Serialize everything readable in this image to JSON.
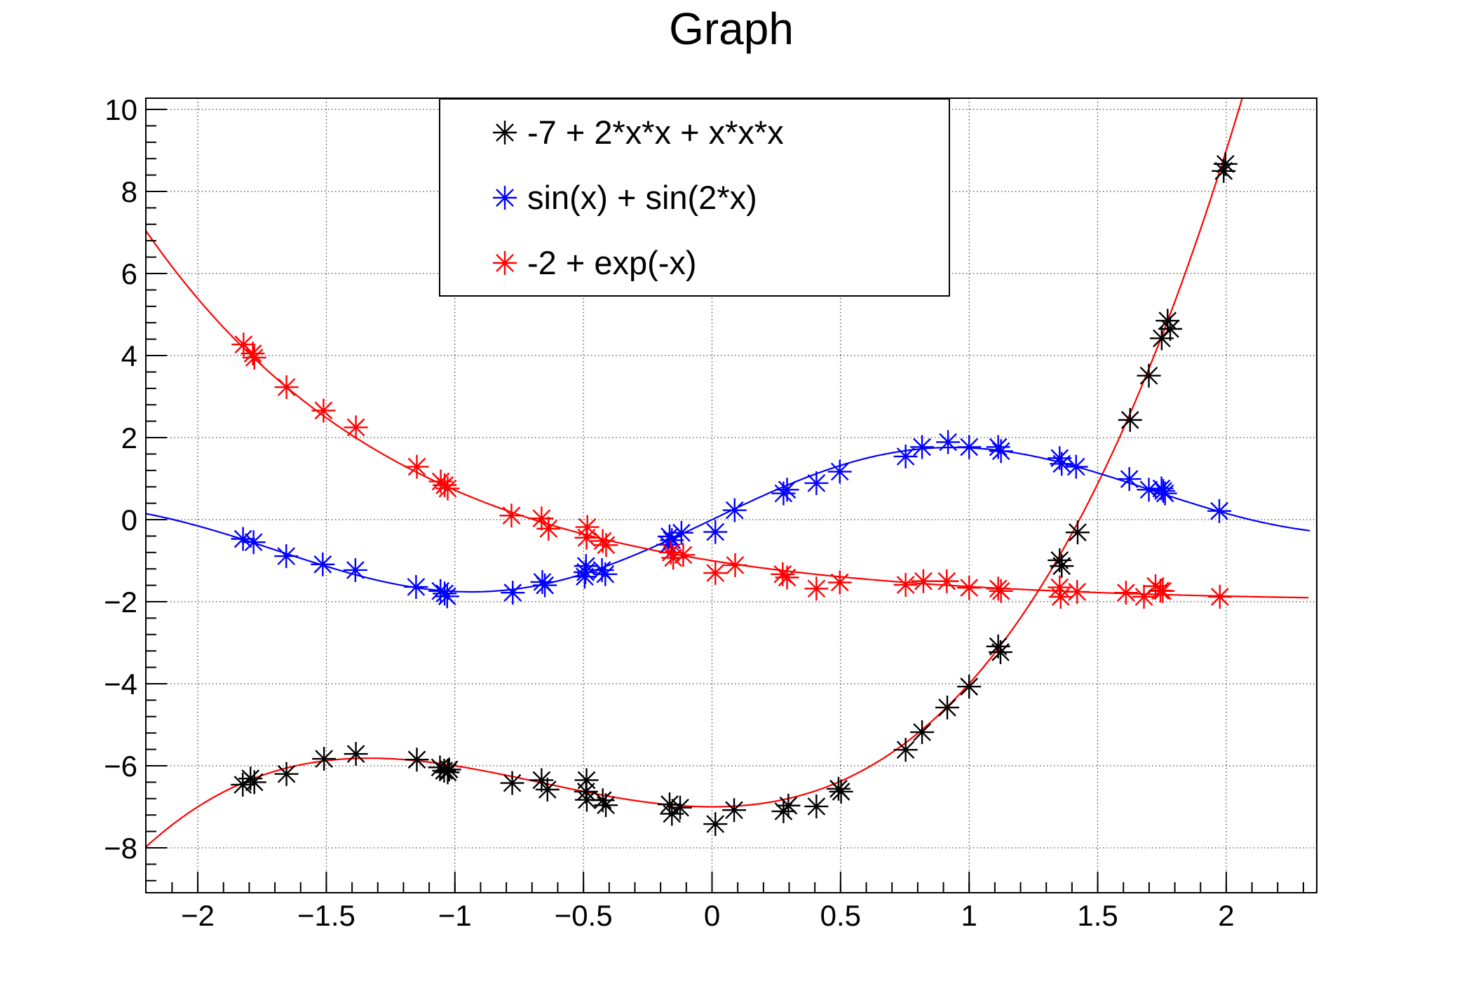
{
  "chart_data": {
    "type": "scatter",
    "title": "Graph",
    "grid": true,
    "legend_position": "top-center",
    "x_axis": {
      "range": [
        -2.202,
        2.352
      ],
      "major_ticks": [
        {
          "v": -2,
          "label": "−2"
        },
        {
          "v": -1.5,
          "label": "−1.5"
        },
        {
          "v": -1,
          "label": "−1"
        },
        {
          "v": -0.5,
          "label": "−0.5"
        },
        {
          "v": 0,
          "label": "0"
        },
        {
          "v": 0.5,
          "label": "0.5"
        },
        {
          "v": 1,
          "label": "1"
        },
        {
          "v": 1.5,
          "label": "1.5"
        },
        {
          "v": 2,
          "label": "2"
        }
      ],
      "minor_step": 0.1
    },
    "y_axis": {
      "range": [
        -9.094,
        10.274
      ],
      "major_ticks": [
        {
          "v": 10,
          "label": "10"
        },
        {
          "v": 8,
          "label": "8"
        },
        {
          "v": 6,
          "label": "6"
        },
        {
          "v": 4,
          "label": "4"
        },
        {
          "v": 2,
          "label": "2"
        },
        {
          "v": 0,
          "label": "0"
        },
        {
          "v": -2,
          "label": "−2"
        },
        {
          "v": -4,
          "label": "−4"
        },
        {
          "v": -6,
          "label": "−6"
        },
        {
          "v": -8,
          "label": "−8"
        }
      ],
      "minor_step": 0.4
    },
    "series": [
      {
        "name": "-7 + 2*x*x + x*x*x",
        "marker": "star",
        "marker_color": "#000000",
        "line_color": "#ff0000",
        "fit": {
          "type": "poly",
          "coeffs": [
            -7,
            0,
            2,
            1
          ],
          "range": [
            -2.202,
            2.325
          ]
        },
        "points": [
          [
            -1.825,
            -6.46
          ],
          [
            -1.795,
            -6.31
          ],
          [
            -1.78,
            -6.4
          ],
          [
            -1.655,
            -6.2
          ],
          [
            -1.509,
            -5.83
          ],
          [
            -1.385,
            -5.71
          ],
          [
            -1.148,
            -5.85
          ],
          [
            -1.058,
            -6.04
          ],
          [
            -1.042,
            -6.12
          ],
          [
            -1.028,
            -6.16
          ],
          [
            -1.022,
            -6.09
          ],
          [
            -0.777,
            -6.42
          ],
          [
            -0.663,
            -6.35
          ],
          [
            -0.64,
            -6.58
          ],
          [
            -0.488,
            -6.35
          ],
          [
            -0.49,
            -6.63
          ],
          [
            -0.487,
            -6.83
          ],
          [
            -0.425,
            -6.84
          ],
          [
            -0.413,
            -6.96
          ],
          [
            -0.165,
            -6.94
          ],
          [
            -0.124,
            -7.02
          ],
          [
            -0.156,
            -7.17
          ],
          [
            0.013,
            -7.42
          ],
          [
            0.086,
            -7.08
          ],
          [
            0.278,
            -7.11
          ],
          [
            0.297,
            -6.97
          ],
          [
            0.406,
            -6.99
          ],
          [
            0.492,
            -6.56
          ],
          [
            0.502,
            -6.63
          ],
          [
            0.753,
            -5.61
          ],
          [
            0.817,
            -5.18
          ],
          [
            0.915,
            -4.58
          ],
          [
            1.0,
            -4.07
          ],
          [
            1.113,
            -3.09
          ],
          [
            1.122,
            -3.23
          ],
          [
            1.352,
            -0.99
          ],
          [
            1.36,
            -1.13
          ],
          [
            1.422,
            -0.31
          ],
          [
            1.626,
            2.43
          ],
          [
            1.699,
            3.51
          ],
          [
            1.749,
            4.42
          ],
          [
            1.772,
            4.85
          ],
          [
            1.782,
            4.65
          ],
          [
            1.99,
            8.5
          ],
          [
            1.997,
            8.67
          ]
        ]
      },
      {
        "name": "sin(x) + sin(2*x)",
        "marker": "star",
        "marker_color": "#0000ff",
        "line_color": "#0000ff",
        "fit": {
          "type": "sin_sum",
          "terms": [
            1,
            2
          ],
          "range": [
            -2.202,
            2.325
          ]
        },
        "points": [
          [
            -1.824,
            -0.47
          ],
          [
            -1.783,
            -0.55
          ],
          [
            -1.656,
            -0.89
          ],
          [
            -1.514,
            -1.09
          ],
          [
            -1.387,
            -1.23
          ],
          [
            -1.151,
            -1.64
          ],
          [
            -1.056,
            -1.74
          ],
          [
            -1.04,
            -1.8
          ],
          [
            -1.03,
            -1.87
          ],
          [
            -0.775,
            -1.78
          ],
          [
            -0.66,
            -1.52
          ],
          [
            -0.65,
            -1.6
          ],
          [
            -0.49,
            -1.13
          ],
          [
            -0.492,
            -1.28
          ],
          [
            -0.495,
            -1.39
          ],
          [
            -0.428,
            -1.23
          ],
          [
            -0.415,
            -1.33
          ],
          [
            -0.165,
            -0.41
          ],
          [
            -0.156,
            -0.5
          ],
          [
            -0.17,
            -0.61
          ],
          [
            -0.119,
            -0.32
          ],
          [
            0.013,
            -0.3
          ],
          [
            0.088,
            0.23
          ],
          [
            0.278,
            0.64
          ],
          [
            0.292,
            0.73
          ],
          [
            0.406,
            0.89
          ],
          [
            0.497,
            1.17
          ],
          [
            0.753,
            1.54
          ],
          [
            0.817,
            1.77
          ],
          [
            0.918,
            1.89
          ],
          [
            1.0,
            1.77
          ],
          [
            1.113,
            1.77
          ],
          [
            1.124,
            1.67
          ],
          [
            1.352,
            1.5
          ],
          [
            1.36,
            1.36
          ],
          [
            1.416,
            1.29
          ],
          [
            1.623,
            0.99
          ],
          [
            1.699,
            0.73
          ],
          [
            1.748,
            0.76
          ],
          [
            1.755,
            0.7
          ],
          [
            1.762,
            0.64
          ],
          [
            1.973,
            0.21
          ]
        ]
      },
      {
        "name": "-2 + exp(-x)",
        "marker": "star",
        "marker_color": "#ff0000",
        "line_color": "#ff0000",
        "fit": {
          "type": "exp_decay",
          "offset": -2,
          "range": [
            -2.202,
            2.32
          ]
        },
        "points": [
          [
            -1.822,
            4.27
          ],
          [
            -1.786,
            4.05
          ],
          [
            -1.78,
            3.95
          ],
          [
            -1.655,
            3.23
          ],
          [
            -1.511,
            2.66
          ],
          [
            -1.385,
            2.25
          ],
          [
            -1.148,
            1.29
          ],
          [
            -1.055,
            0.93
          ],
          [
            -1.04,
            0.84
          ],
          [
            -1.028,
            0.76
          ],
          [
            -0.78,
            0.1
          ],
          [
            -0.663,
            0.03
          ],
          [
            -0.636,
            -0.22
          ],
          [
            -0.485,
            -0.18
          ],
          [
            -0.488,
            -0.44
          ],
          [
            -0.425,
            -0.52
          ],
          [
            -0.412,
            -0.62
          ],
          [
            -0.16,
            -0.8
          ],
          [
            -0.151,
            -0.93
          ],
          [
            -0.112,
            -0.86
          ],
          [
            0.013,
            -1.3
          ],
          [
            0.09,
            -1.11
          ],
          [
            0.275,
            -1.33
          ],
          [
            0.292,
            -1.41
          ],
          [
            0.406,
            -1.68
          ],
          [
            0.497,
            -1.53
          ],
          [
            0.753,
            -1.59
          ],
          [
            0.822,
            -1.5
          ],
          [
            0.913,
            -1.5
          ],
          [
            1.0,
            -1.66
          ],
          [
            1.113,
            -1.68
          ],
          [
            1.124,
            -1.74
          ],
          [
            1.352,
            -1.65
          ],
          [
            1.356,
            -1.88
          ],
          [
            1.42,
            -1.76
          ],
          [
            1.61,
            -1.78
          ],
          [
            1.68,
            -1.88
          ],
          [
            1.725,
            -1.62
          ],
          [
            1.744,
            -1.73
          ],
          [
            1.753,
            -1.74
          ],
          [
            1.975,
            -1.88
          ]
        ]
      }
    ]
  },
  "legend": {
    "items": [
      {
        "label": "-7 + 2*x*x + x*x*x"
      },
      {
        "label": "sin(x) + sin(2*x)"
      },
      {
        "label": "-2 + exp(-x)"
      }
    ]
  }
}
